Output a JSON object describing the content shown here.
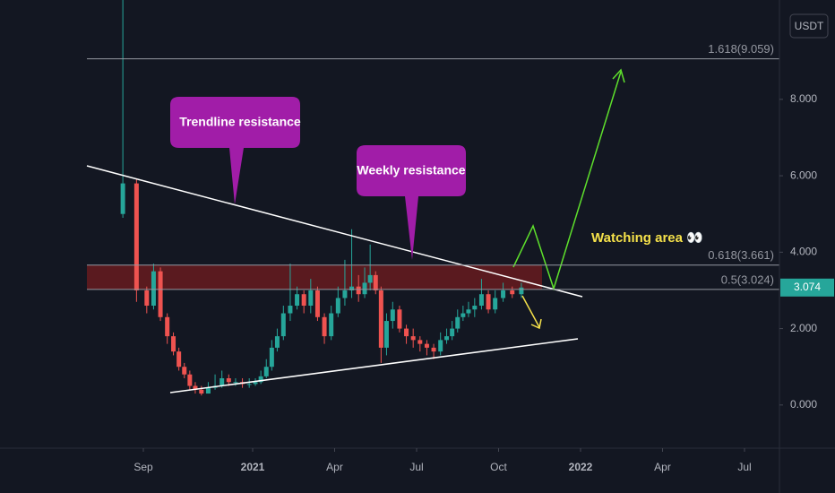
{
  "chart_data": {
    "type": "candlestick",
    "currency": "USDT",
    "x": [
      "2020-08",
      "2020-08",
      "2020-09",
      "2020-09",
      "2020-09",
      "2020-09",
      "2020-10",
      "2020-10",
      "2020-10",
      "2020-10",
      "2020-10",
      "2020-11",
      "2020-11",
      "2020-11",
      "2020-11",
      "2020-12",
      "2020-12",
      "2020-12",
      "2020-12",
      "2021-01",
      "2021-01",
      "2021-01",
      "2021-01",
      "2021-01",
      "2021-02",
      "2021-02",
      "2021-02",
      "2021-02",
      "2021-03",
      "2021-03",
      "2021-03",
      "2021-03",
      "2021-04",
      "2021-04",
      "2021-04",
      "2021-04",
      "2021-05",
      "2021-05",
      "2021-05",
      "2021-05",
      "2021-05",
      "2021-06",
      "2021-06",
      "2021-06",
      "2021-06",
      "2021-07",
      "2021-07",
      "2021-07",
      "2021-07",
      "2021-08",
      "2021-08",
      "2021-08",
      "2021-08",
      "2021-08",
      "2021-09",
      "2021-09",
      "2021-09",
      "2021-09",
      "2021-10",
      "2021-10",
      "2021-10"
    ],
    "open": [
      5.0,
      5.8,
      3.0,
      2.6,
      3.5,
      2.3,
      1.8,
      1.4,
      1.0,
      0.8,
      0.5,
      0.4,
      0.3,
      0.45,
      0.5,
      0.7,
      0.6,
      0.6,
      0.55,
      0.55,
      0.6,
      0.75,
      1.0,
      1.5,
      1.8,
      2.4,
      2.6,
      2.9,
      2.6,
      3.0,
      2.3,
      1.8,
      2.4,
      2.8,
      3.0,
      3.1,
      2.9,
      3.2,
      3.4,
      3.0,
      1.5,
      2.2,
      2.5,
      2.0,
      1.8,
      1.7,
      1.6,
      1.5,
      1.4,
      1.7,
      1.8,
      2.0,
      2.3,
      2.4,
      2.5,
      2.6,
      2.9,
      2.5,
      2.8,
      3.0,
      2.9
    ],
    "high": [
      10.6,
      5.9,
      3.1,
      3.7,
      3.6,
      2.4,
      1.9,
      1.5,
      1.1,
      0.9,
      0.6,
      0.5,
      0.6,
      0.8,
      0.9,
      0.8,
      0.7,
      0.7,
      0.7,
      0.7,
      0.9,
      1.2,
      1.7,
      2.0,
      2.6,
      3.7,
      3.1,
      3.0,
      3.3,
      3.1,
      2.4,
      2.6,
      3.1,
      3.8,
      4.6,
      3.4,
      3.6,
      4.2,
      3.5,
      3.1,
      2.4,
      2.7,
      2.6,
      2.1,
      2.0,
      1.8,
      1.7,
      1.6,
      1.9,
      2.0,
      2.2,
      2.5,
      2.6,
      2.7,
      2.8,
      3.3,
      3.0,
      3.0,
      3.2,
      3.1,
      3.2
    ],
    "low": [
      4.9,
      2.7,
      2.4,
      2.5,
      2.2,
      1.6,
      1.3,
      0.9,
      0.7,
      0.4,
      0.3,
      0.25,
      0.3,
      0.4,
      0.45,
      0.5,
      0.5,
      0.45,
      0.45,
      0.5,
      0.55,
      0.7,
      0.9,
      1.4,
      1.7,
      2.2,
      2.5,
      2.4,
      2.4,
      2.2,
      1.6,
      1.7,
      2.3,
      2.6,
      2.8,
      2.7,
      2.8,
      3.0,
      2.9,
      1.1,
      1.3,
      2.0,
      1.9,
      1.6,
      1.5,
      1.4,
      1.3,
      1.2,
      1.3,
      1.6,
      1.7,
      1.9,
      2.2,
      2.3,
      2.3,
      2.5,
      2.4,
      2.4,
      2.7,
      2.8,
      2.8
    ],
    "close": [
      5.8,
      3.0,
      2.6,
      3.5,
      2.3,
      1.8,
      1.4,
      1.0,
      0.8,
      0.5,
      0.4,
      0.3,
      0.45,
      0.5,
      0.7,
      0.6,
      0.6,
      0.55,
      0.55,
      0.6,
      0.75,
      1.0,
      1.5,
      1.8,
      2.4,
      2.6,
      2.9,
      2.6,
      3.0,
      2.3,
      1.8,
      2.4,
      2.8,
      3.0,
      3.1,
      2.9,
      3.2,
      3.4,
      3.0,
      1.5,
      2.2,
      2.5,
      2.0,
      1.8,
      1.7,
      1.6,
      1.5,
      1.4,
      1.7,
      1.8,
      2.0,
      2.3,
      2.4,
      2.5,
      2.6,
      2.9,
      2.5,
      2.8,
      3.0,
      2.9,
      3.074
    ],
    "up_color": "#26a69a",
    "down_color": "#ef5350",
    "last_price": 3.074,
    "levels": [
      {
        "value": 9.059,
        "label": "1.618(9.059)"
      },
      {
        "value": 3.661,
        "label": "0.618(3.661)"
      },
      {
        "value": 3.024,
        "label": "0.5(3.024)"
      }
    ],
    "ylim": [
      -1.13,
      10.6
    ],
    "yticks": [
      {
        "value": 0,
        "label": "0.000"
      },
      {
        "value": 2,
        "label": "2.000"
      },
      {
        "value": 4,
        "label": "4.000"
      },
      {
        "value": 6,
        "label": "6.000"
      },
      {
        "value": 8,
        "label": "8.000"
      }
    ],
    "xticks": [
      {
        "value": "2020-09",
        "label": "Sep"
      },
      {
        "value": "2021-01",
        "label": "2021"
      },
      {
        "value": "2021-04",
        "label": "Apr"
      },
      {
        "value": "2021-07",
        "label": "Jul"
      },
      {
        "value": "2021-10",
        "label": "Oct"
      },
      {
        "value": "2022-01",
        "label": "2022"
      },
      {
        "value": "2022-04",
        "label": "Apr"
      },
      {
        "value": "2022-07",
        "label": "Jul"
      }
    ],
    "annotations": [
      "Trendline resistance",
      "Weekly resistance",
      "Watching area 👀"
    ]
  }
}
